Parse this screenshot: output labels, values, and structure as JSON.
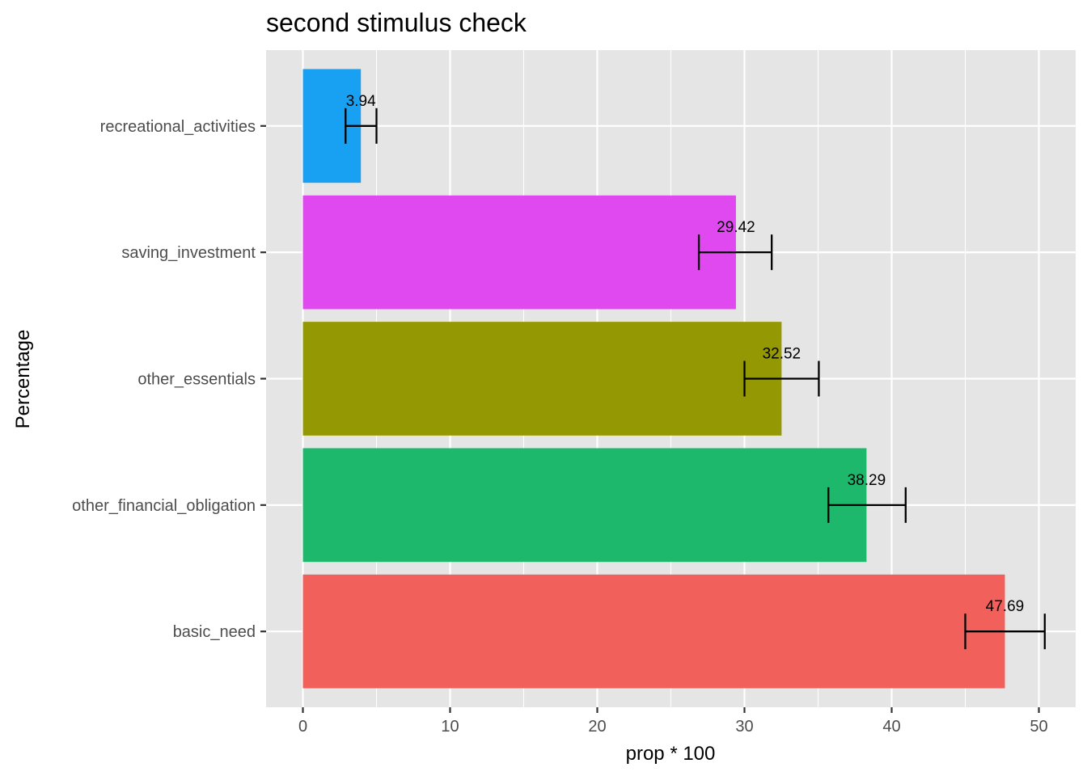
{
  "chart_data": {
    "type": "bar",
    "orientation": "horizontal",
    "title": "second stimulus check",
    "xlabel": "prop * 100",
    "ylabel": "Percentage",
    "xlim": [
      -2.5,
      52.5
    ],
    "x_ticks": [
      0,
      10,
      20,
      30,
      40,
      50
    ],
    "x_tick_labels": [
      "0",
      "10",
      "20",
      "30",
      "40",
      "50"
    ],
    "grid": true,
    "legend": "none",
    "categories": [
      "basic_need",
      "other_financial_obligation",
      "other_essentials",
      "saving_investment",
      "recreational_activities"
    ],
    "values": [
      47.69,
      38.29,
      32.52,
      29.42,
      3.94
    ],
    "value_labels": [
      "47.69",
      "38.29",
      "32.52",
      "29.42",
      "3.94"
    ],
    "error_low": [
      45.0,
      35.7,
      30.0,
      26.9,
      2.9
    ],
    "error_high": [
      50.4,
      40.95,
      35.05,
      31.85,
      5.0
    ],
    "colors": [
      "#F2605B",
      "#1DB86C",
      "#949803",
      "#E049F0",
      "#18A1F3"
    ],
    "panel_background": "#E5E5E5",
    "grid_color": "#FFFFFF"
  }
}
